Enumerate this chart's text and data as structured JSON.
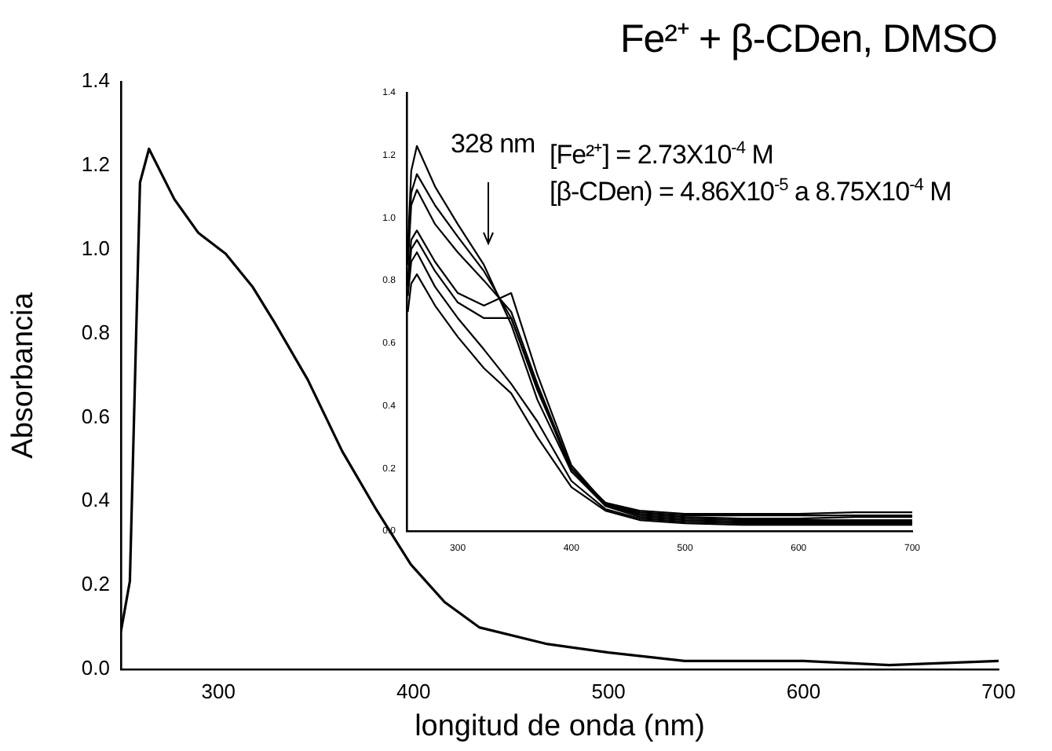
{
  "chart_data": [
    {
      "type": "line",
      "title": "Fe²⁺ + β-CDen, DMSO",
      "xlabel": "longitud de onda (nm)",
      "ylabel": "Absorbancia",
      "xlim": [
        250,
        700
      ],
      "xticks": [
        300,
        400,
        500,
        600,
        700
      ],
      "ylim": [
        0,
        1.4
      ],
      "yticks": [
        {
          "value": 0,
          "label": "0.0"
        },
        {
          "value": 0.2,
          "label": "0.2"
        },
        {
          "value": 0.4,
          "label": "0.4"
        },
        {
          "value": 0.6,
          "label": "0.6"
        },
        {
          "value": 0.8,
          "label": "0.8"
        },
        {
          "value": 1,
          "label": "1.0"
        },
        {
          "value": 1.2,
          "label": "1.2"
        },
        {
          "value": 1.4,
          "label": "1.4"
        }
      ],
      "x": [
        250,
        254.6,
        259.8,
        264.4,
        277.4,
        289.7,
        303.7,
        317.7,
        328.3,
        345.8,
        363.4,
        381,
        398.6,
        416,
        433.7,
        468.8,
        500,
        539,
        600,
        644,
        700
      ],
      "series": [
        {
          "color": "#000000",
          "values": [
            0.09,
            0.21,
            1.16,
            1.24,
            1.12,
            1.04,
            0.99,
            0.91,
            0.83,
            0.69,
            0.52,
            0.38,
            0.25,
            0.16,
            0.1,
            0.06,
            0.04,
            0.02,
            0.02,
            0.01,
            0.02
          ]
        }
      ]
    },
    {
      "type": "line",
      "xlim": [
        255,
        700
      ],
      "xticks": [
        300,
        400,
        500,
        600,
        700
      ],
      "ylim": [
        0,
        1.4
      ],
      "yticks": [
        {
          "value": 0,
          "label": "0.0"
        },
        {
          "value": 0.2,
          "label": "0.2"
        },
        {
          "value": 0.4,
          "label": "0.4"
        },
        {
          "value": 0.6,
          "label": "0.6"
        },
        {
          "value": 0.8,
          "label": "0.8"
        },
        {
          "value": 1,
          "label": "1.0"
        },
        {
          "value": 1.2,
          "label": "1.2"
        },
        {
          "value": 1.4,
          "label": "1.4"
        }
      ],
      "annotations": [
        "328 nm",
        "[Fe²⁺] = 2.73X10$^{-4}$ M",
        "[β-CDen) = 4.86X10$^{-5}$ a 8.75X10$^{-4}$ M"
      ],
      "x": [
        256,
        259,
        264,
        280,
        300,
        323,
        347,
        370,
        400,
        430,
        460,
        500,
        550,
        600,
        650,
        700
      ],
      "series": [
        {
          "color": "#000000",
          "values": [
            0.9,
            1.15,
            1.23,
            1.1,
            0.98,
            0.85,
            0.66,
            0.42,
            0.19,
            0.09,
            0.065,
            0.055,
            0.055,
            0.055,
            0.06,
            0.06
          ]
        },
        {
          "color": "#000000",
          "values": [
            0.88,
            1.08,
            1.14,
            1.04,
            0.94,
            0.83,
            0.68,
            0.45,
            0.2,
            0.09,
            0.06,
            0.05,
            0.05,
            0.05,
            0.05,
            0.05
          ]
        },
        {
          "color": "#000000",
          "values": [
            0.85,
            1.04,
            1.09,
            0.98,
            0.89,
            0.8,
            0.7,
            0.47,
            0.2,
            0.085,
            0.055,
            0.045,
            0.04,
            0.04,
            0.045,
            0.045
          ]
        },
        {
          "color": "#000000",
          "values": [
            0.8,
            0.93,
            0.96,
            0.86,
            0.76,
            0.72,
            0.76,
            0.5,
            0.21,
            0.085,
            0.05,
            0.04,
            0.035,
            0.035,
            0.035,
            0.035
          ]
        },
        {
          "color": "#000000",
          "values": [
            0.78,
            0.9,
            0.93,
            0.83,
            0.73,
            0.68,
            0.68,
            0.46,
            0.19,
            0.08,
            0.045,
            0.035,
            0.03,
            0.03,
            0.03,
            0.03
          ]
        },
        {
          "color": "#000000",
          "values": [
            0.75,
            0.86,
            0.89,
            0.78,
            0.68,
            0.58,
            0.47,
            0.35,
            0.16,
            0.07,
            0.04,
            0.03,
            0.025,
            0.025,
            0.025,
            0.025
          ]
        },
        {
          "color": "#000000",
          "values": [
            0.7,
            0.79,
            0.82,
            0.72,
            0.62,
            0.52,
            0.44,
            0.3,
            0.14,
            0.065,
            0.035,
            0.025,
            0.02,
            0.02,
            0.02,
            0.02
          ]
        }
      ]
    }
  ]
}
